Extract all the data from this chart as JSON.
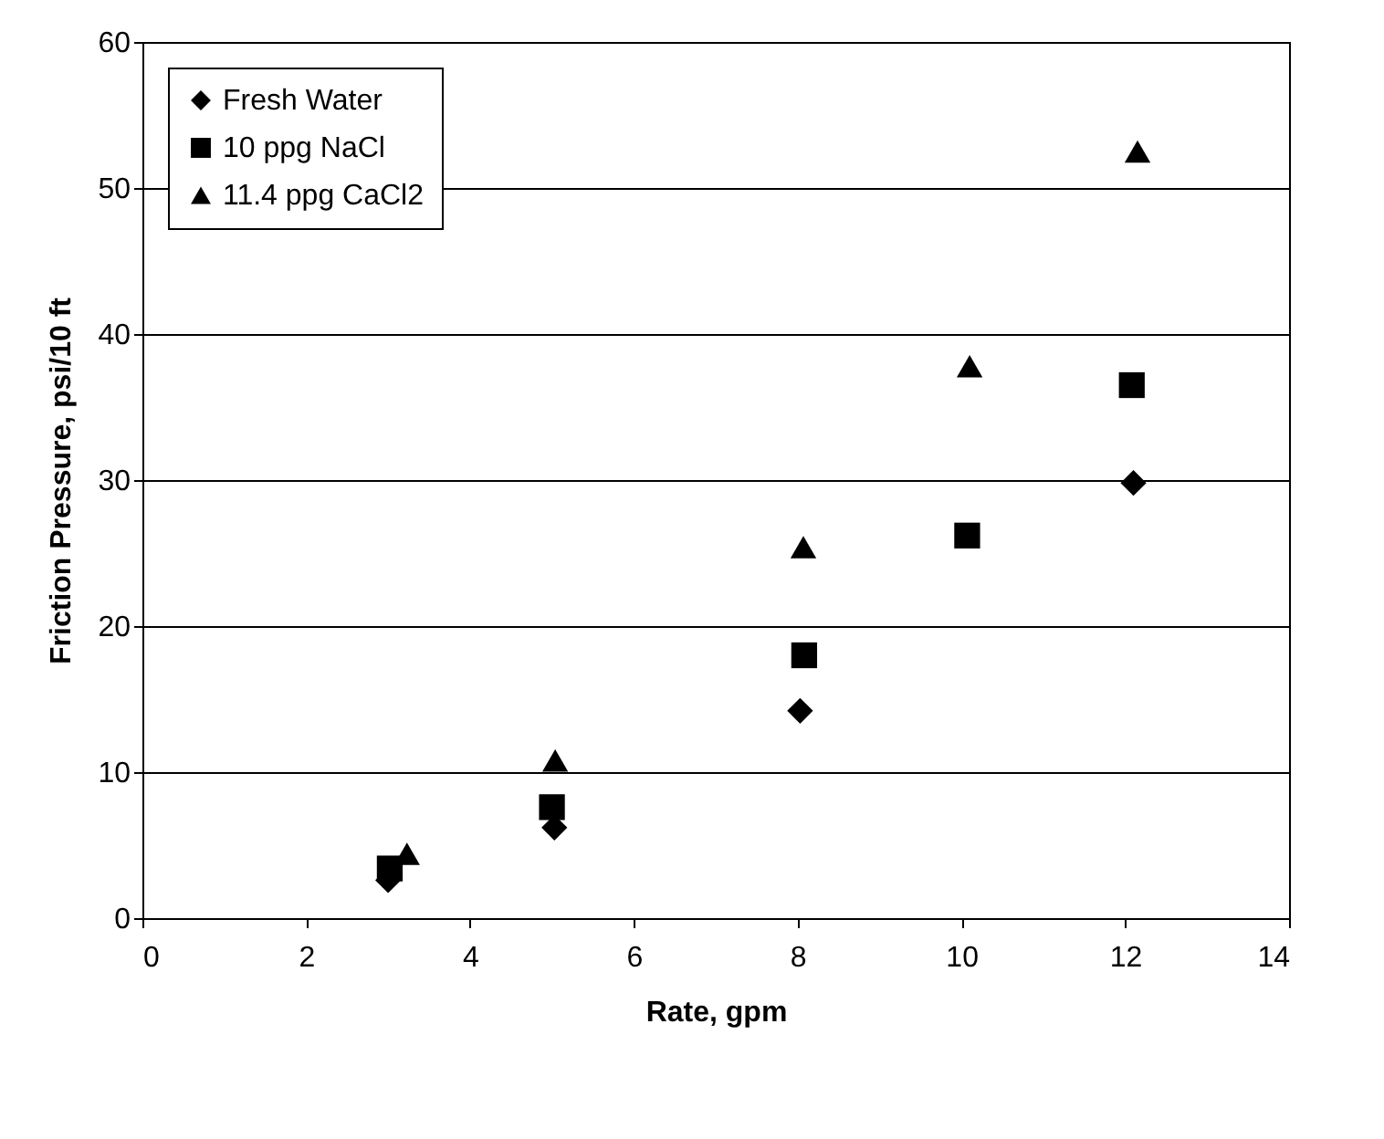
{
  "chart_data": {
    "type": "scatter",
    "xlabel": "Rate, gpm",
    "ylabel": "Friction Pressure, psi/10 ft",
    "xlim": [
      0,
      14
    ],
    "xticks": [
      0,
      2,
      4,
      6,
      8,
      10,
      12,
      14
    ],
    "ylim": [
      0,
      60
    ],
    "yticks": [
      0,
      10,
      20,
      30,
      40,
      50,
      60
    ],
    "grid": "y",
    "legend": "top left",
    "series": [
      {
        "name": "Fresh Water",
        "color": "#000000",
        "marker": "diamond",
        "x": [
          3.0,
          5.03,
          8.03,
          12.1
        ],
        "values": [
          2.6,
          6.2,
          14.2,
          29.8
        ]
      },
      {
        "name": "10 ppg NaCl",
        "color": "#000000",
        "marker": "square",
        "x": [
          3.02,
          5.0,
          8.08,
          10.07,
          12.08
        ],
        "values": [
          3.4,
          7.6,
          18.0,
          26.2,
          36.5
        ]
      },
      {
        "name": "11.4 ppg CaCl2",
        "color": "#000000",
        "marker": "triangle",
        "x": [
          3.23,
          5.04,
          8.07,
          10.1,
          12.15
        ],
        "values": [
          4.4,
          10.8,
          25.4,
          37.8,
          52.5
        ]
      }
    ]
  }
}
